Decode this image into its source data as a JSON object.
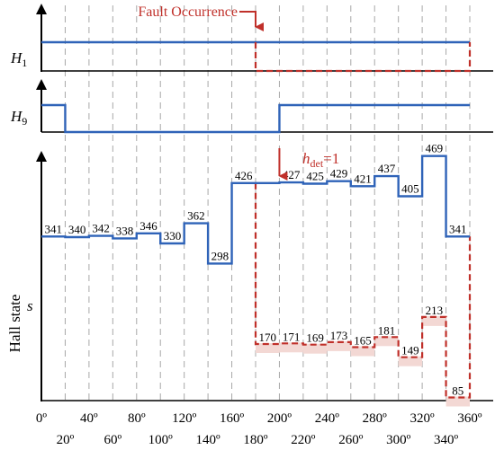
{
  "colors": {
    "normal": "#2f63b8",
    "fault": "#c0302a",
    "fault_fill": "#f3d8d4",
    "axis": "#000000",
    "grid": "#a8a8a8",
    "annotation": "#c0302a"
  },
  "panels": {
    "h1": {
      "label_base": "H",
      "label_sub": "1"
    },
    "h9": {
      "label_base": "H",
      "label_sub": "9"
    },
    "s": {
      "ylabel": "Hall state",
      "label": "s"
    }
  },
  "annotations": {
    "fault": {
      "text": "Fault Occurrence",
      "x": 180
    },
    "hdet": {
      "base": "h",
      "sub": "det",
      "suffix": "=1",
      "x": 200
    }
  },
  "chart_data": [
    {
      "type": "line",
      "panel": "H1",
      "x_range": [
        0,
        360
      ],
      "series": [
        {
          "style": "normal",
          "x": [
            0,
            360
          ],
          "y": [
            1,
            1
          ]
        },
        {
          "style": "fault",
          "x": [
            180,
            180,
            360,
            360
          ],
          "y": [
            1,
            0,
            0,
            1
          ]
        }
      ]
    },
    {
      "type": "line",
      "panel": "H9",
      "x_range": [
        0,
        360
      ],
      "series": [
        {
          "style": "normal",
          "x": [
            0,
            20,
            20,
            200,
            200,
            360
          ],
          "y": [
            1,
            1,
            0,
            0,
            1,
            1
          ]
        }
      ]
    },
    {
      "type": "line",
      "panel": "s",
      "x_range": [
        0,
        360
      ],
      "x_ticks_row1": [
        "0º",
        "40º",
        "80º",
        "120º",
        "160º",
        "200º",
        "240º",
        "280º",
        "320º",
        "360º"
      ],
      "x_ticks_row1_values": [
        0,
        40,
        80,
        120,
        160,
        200,
        240,
        280,
        320,
        360
      ],
      "x_ticks_row2": [
        "20º",
        "60º",
        "100º",
        "140º",
        "180º",
        "220º",
        "260º",
        "300º",
        "340º"
      ],
      "x_ticks_row2_values": [
        20,
        60,
        100,
        140,
        180,
        220,
        260,
        300,
        340
      ],
      "grid_x": [
        20,
        40,
        60,
        80,
        100,
        120,
        140,
        160,
        180,
        200,
        220,
        240,
        260,
        280,
        300,
        320,
        340,
        360
      ],
      "steps_normal": {
        "edges": [
          0,
          20,
          40,
          60,
          80,
          100,
          120,
          140,
          160,
          180,
          200,
          220,
          240,
          260,
          280,
          300,
          320,
          340,
          360
        ],
        "values": [
          341,
          340,
          342,
          338,
          346,
          330,
          362,
          298,
          426,
          426,
          427,
          425,
          429,
          421,
          437,
          405,
          469,
          341
        ],
        "labels": [
          "341",
          "340",
          "342",
          "338",
          "346",
          "330",
          "362",
          "298",
          "426",
          "",
          "427",
          "425",
          "429",
          "421",
          "437",
          "405",
          "469",
          "341"
        ]
      },
      "steps_fault": {
        "edges": [
          180,
          200,
          220,
          240,
          260,
          280,
          300,
          320,
          340,
          360
        ],
        "values": [
          170,
          171,
          169,
          173,
          165,
          181,
          149,
          213,
          85
        ],
        "labels": [
          "170",
          "171",
          "169",
          "173",
          "165",
          "181",
          "149",
          "213",
          "85"
        ]
      }
    }
  ]
}
